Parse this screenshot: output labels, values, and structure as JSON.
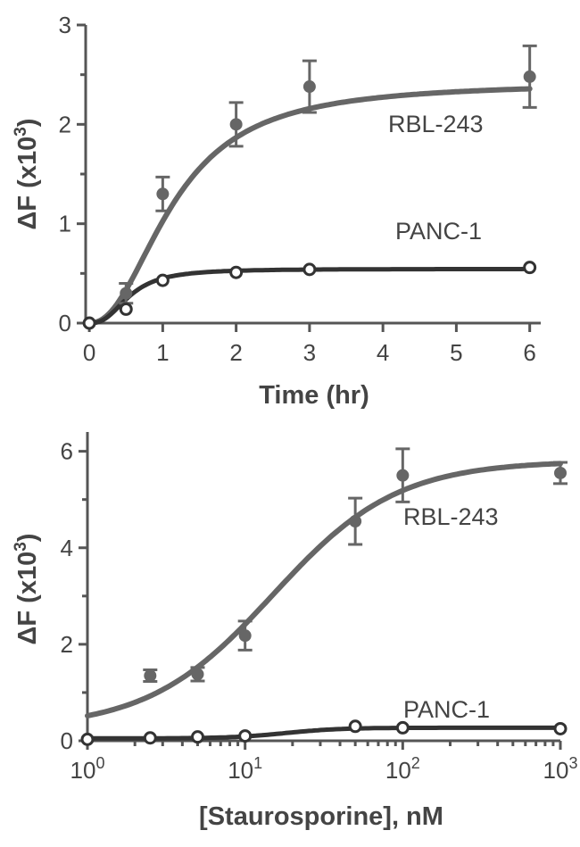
{
  "chart_data": [
    {
      "type": "line",
      "xlabel": "Time (hr)",
      "ylabel": "ΔF (x10",
      "ylabel_sup": "3",
      "ylabel_close": ")",
      "x_ticks": [
        {
          "value": 0,
          "label": "0"
        },
        {
          "value": 1,
          "label": "1"
        },
        {
          "value": 2,
          "label": "2"
        },
        {
          "value": 3,
          "label": "3"
        },
        {
          "value": 4,
          "label": "4"
        },
        {
          "value": 5,
          "label": "5"
        },
        {
          "value": 6,
          "label": "6"
        }
      ],
      "y_ticks": [
        {
          "value": 0,
          "label": "0"
        },
        {
          "value": 1,
          "label": "1"
        },
        {
          "value": 2,
          "label": "2"
        },
        {
          "value": 3,
          "label": "3"
        }
      ],
      "xlim": [
        -0.05,
        6.15
      ],
      "ylim": [
        0,
        3
      ],
      "series": [
        {
          "name": "RBL-243",
          "marker": "filled",
          "color": "#666666",
          "x": [
            0,
            0.5,
            1,
            2,
            3,
            6
          ],
          "y": [
            0,
            0.3,
            1.3,
            2.0,
            2.38,
            2.48
          ],
          "err": [
            0,
            0.1,
            0.17,
            0.22,
            0.26,
            0.31
          ],
          "fit": {
            "model": "hill_time",
            "top": 2.42,
            "k": 1.15,
            "n": 2.2
          }
        },
        {
          "name": "PANC-1",
          "marker": "open",
          "color": "#333333",
          "x": [
            0,
            0.5,
            1,
            2,
            3,
            6
          ],
          "y": [
            0,
            0.14,
            0.43,
            0.51,
            0.54,
            0.56
          ],
          "err": [
            0,
            0,
            0,
            0,
            0,
            0
          ],
          "fit": {
            "model": "hill_time",
            "top": 0.545,
            "k": 0.55,
            "n": 2.6
          }
        }
      ]
    },
    {
      "type": "line",
      "x_scale": "log",
      "xlabel": "[Staurosporine], nM",
      "ylabel": "ΔF (x10",
      "ylabel_sup": "3",
      "ylabel_close": ")",
      "x_ticks": [
        {
          "value": 1,
          "base": "10",
          "exp": "0"
        },
        {
          "value": 10,
          "base": "10",
          "exp": "1"
        },
        {
          "value": 100,
          "base": "10",
          "exp": "2"
        },
        {
          "value": 1000,
          "base": "10",
          "exp": "3"
        }
      ],
      "y_ticks": [
        {
          "value": 0,
          "label": "0"
        },
        {
          "value": 2,
          "label": "2"
        },
        {
          "value": 4,
          "label": "4"
        },
        {
          "value": 6,
          "label": "6"
        }
      ],
      "xlim": [
        1,
        1000
      ],
      "ylim": [
        0,
        6.4
      ],
      "series": [
        {
          "name": "RBL-243",
          "marker": "filled",
          "color": "#666666",
          "x": [
            2.5,
            5,
            10,
            50,
            100,
            1000
          ],
          "y": [
            1.35,
            1.38,
            2.18,
            4.55,
            5.5,
            5.55
          ],
          "err": [
            0.12,
            0.14,
            0.3,
            0.48,
            0.55,
            0.22
          ],
          "fit": {
            "model": "hill_dose",
            "bottom": 0.25,
            "top": 5.8,
            "ec50": 15,
            "n": 1.1
          }
        },
        {
          "name": "PANC-1",
          "marker": "open",
          "color": "#333333",
          "x": [
            1,
            2.5,
            5,
            10,
            50,
            100,
            1000
          ],
          "y": [
            0.03,
            0.06,
            0.08,
            0.1,
            0.3,
            0.27,
            0.25
          ],
          "err": [
            0,
            0,
            0,
            0,
            0,
            0,
            0
          ],
          "fit": {
            "model": "hill_dose",
            "bottom": 0.05,
            "top": 0.27,
            "ec50": 18,
            "n": 2.5
          }
        }
      ]
    }
  ]
}
